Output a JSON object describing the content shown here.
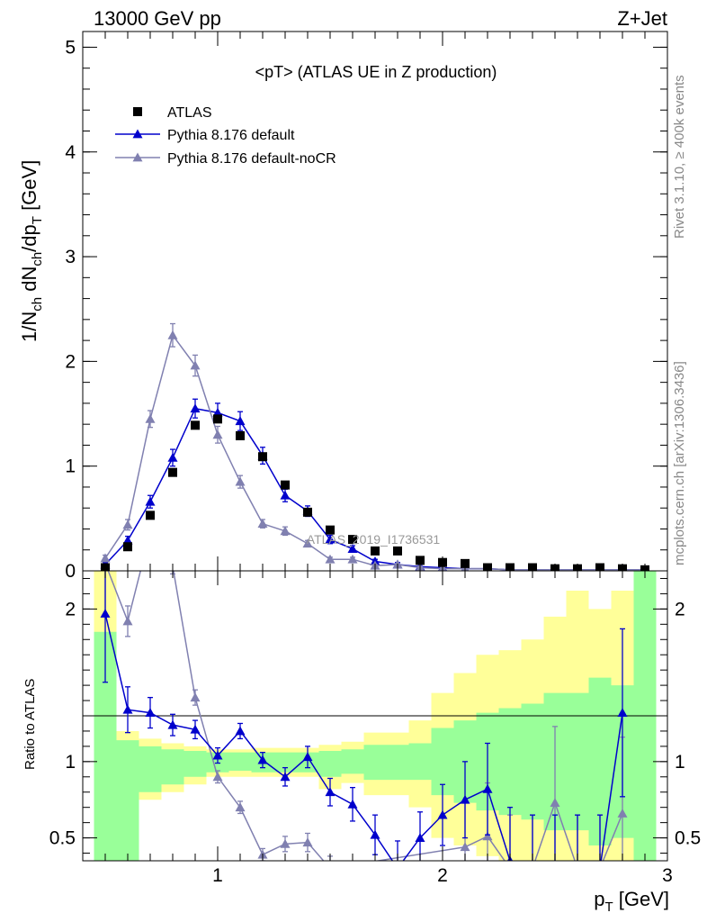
{
  "header": {
    "left": "13000 GeV pp",
    "right": "Z+Jet"
  },
  "side_text": {
    "top": "Rivet 3.1.10, ≥ 400k events",
    "bottom": "mcplots.cern.ch [arXiv:1306.3436]"
  },
  "watermark": "ATLAS_2019_I1736531",
  "chart_data": [
    {
      "type": "scatter",
      "panel": "main",
      "title": "<pT> (ATLAS UE in Z production)",
      "ylabel": "1/N_ch dN_ch/dp_T [GeV]",
      "xlim": [
        0.4,
        3.0
      ],
      "ylim": [
        0,
        5.15
      ],
      "x_ticks": [
        1,
        2,
        3
      ],
      "y_ticks": [
        0,
        1,
        2,
        3,
        4,
        5
      ],
      "legend_position": "top-left",
      "series": [
        {
          "name": "ATLAS",
          "marker": "square",
          "color": "#000000",
          "x": [
            0.5,
            0.6,
            0.7,
            0.8,
            0.9,
            1.0,
            1.1,
            1.2,
            1.3,
            1.4,
            1.5,
            1.6,
            1.7,
            1.8,
            1.9,
            2.0,
            2.1,
            2.2,
            2.3,
            2.4,
            2.5,
            2.6,
            2.7,
            2.8,
            2.9
          ],
          "y": [
            0.03,
            0.23,
            0.53,
            0.94,
            1.39,
            1.45,
            1.29,
            1.09,
            0.82,
            0.56,
            0.39,
            0.3,
            0.19,
            0.19,
            0.1,
            0.08,
            0.07,
            0.03,
            0.03,
            0.03,
            0.02,
            0.02,
            0.03,
            0.02,
            0.01
          ]
        },
        {
          "name": "Pythia 8.176 default",
          "marker": "triangle",
          "color": "#0000cc",
          "x": [
            0.5,
            0.6,
            0.7,
            0.8,
            0.9,
            1.0,
            1.1,
            1.2,
            1.3,
            1.4,
            1.5,
            1.6,
            1.7,
            1.8,
            1.9,
            2.0,
            2.1,
            2.2,
            2.3,
            2.4,
            2.5,
            2.6,
            2.7,
            2.8,
            2.9
          ],
          "y": [
            0.06,
            0.29,
            0.66,
            1.08,
            1.55,
            1.51,
            1.43,
            1.1,
            0.72,
            0.57,
            0.3,
            0.21,
            0.09,
            0.06,
            0.04,
            0.03,
            0.02,
            0.02,
            0.01,
            0.01,
            0.01,
            0.01,
            0.01,
            0.01,
            0.01
          ],
          "err": [
            0.02,
            0.04,
            0.06,
            0.08,
            0.09,
            0.09,
            0.09,
            0.08,
            0.06,
            0.05,
            0.04,
            0.03,
            0.02,
            0.02,
            0.02,
            0.02,
            0.02,
            0.02,
            0.01,
            0.01,
            0.01,
            0.01,
            0.01,
            0.01,
            0.01
          ]
        },
        {
          "name": "Pythia 8.176 default-noCR",
          "marker": "triangle",
          "color": "#8080b0",
          "x": [
            0.5,
            0.6,
            0.7,
            0.8,
            0.9,
            1.0,
            1.1,
            1.2,
            1.3,
            1.4,
            1.5,
            1.6,
            1.7,
            1.8,
            1.9,
            2.0,
            2.1,
            2.2,
            2.3,
            2.4,
            2.5,
            2.6,
            2.7,
            2.8,
            2.9
          ],
          "y": [
            0.12,
            0.44,
            1.45,
            2.25,
            1.96,
            1.3,
            0.85,
            0.45,
            0.38,
            0.26,
            0.11,
            0.11,
            0.05,
            0.06,
            0.03,
            0.02,
            0.02,
            0.02,
            0.01,
            0.01,
            0.01,
            0.01,
            0.01,
            0.01,
            0.01
          ],
          "err": [
            0.03,
            0.05,
            0.08,
            0.11,
            0.1,
            0.08,
            0.06,
            0.04,
            0.04,
            0.03,
            0.02,
            0.02,
            0.01,
            0.01,
            0.01,
            0.01,
            0.01,
            0.01,
            0.01,
            0.01,
            0.01,
            0.01,
            0.01,
            0.01,
            0.01
          ]
        }
      ]
    },
    {
      "type": "line",
      "panel": "ratio",
      "ylabel": "Ratio to ATLAS",
      "xlabel": "p_T [GeV]",
      "xlim": [
        0.4,
        3.0
      ],
      "ylim": [
        0.35,
        2.25
      ],
      "x_ticks": [
        1,
        2,
        3
      ],
      "y_ticks": [
        0.5,
        1,
        2
      ],
      "bins": [
        0.45,
        0.55,
        0.65,
        0.75,
        0.85,
        0.95,
        1.05,
        1.15,
        1.25,
        1.35,
        1.45,
        1.55,
        1.65,
        1.75,
        1.85,
        1.95,
        2.05,
        2.15,
        2.25,
        2.35,
        2.45,
        2.55,
        2.65,
        2.75,
        2.85,
        2.95
      ],
      "band_green_lo": [
        0.3,
        0.3,
        0.8,
        0.85,
        0.9,
        0.93,
        0.94,
        0.93,
        0.93,
        0.93,
        0.9,
        0.92,
        0.88,
        0.88,
        0.88,
        0.78,
        0.73,
        0.68,
        0.65,
        0.62,
        0.55,
        0.55,
        0.45,
        0.5,
        0.3
      ],
      "band_green_hi": [
        1.85,
        1.14,
        1.1,
        1.08,
        1.07,
        1.06,
        1.06,
        1.06,
        1.06,
        1.06,
        1.07,
        1.08,
        1.11,
        1.11,
        1.12,
        1.22,
        1.27,
        1.32,
        1.35,
        1.38,
        1.45,
        1.45,
        1.55,
        1.5,
        2.3
      ],
      "band_yellow_lo": [
        0.3,
        0.65,
        0.75,
        0.8,
        0.85,
        0.9,
        0.9,
        0.9,
        0.9,
        0.9,
        0.82,
        0.86,
        0.78,
        0.78,
        0.7,
        0.5,
        0.45,
        0.38,
        0.35,
        0.35,
        0.3,
        0.3,
        0.3,
        0.3,
        0.3
      ],
      "band_yellow_hi": [
        2.3,
        1.2,
        1.15,
        1.12,
        1.1,
        1.08,
        1.08,
        1.09,
        1.09,
        1.09,
        1.11,
        1.13,
        1.19,
        1.19,
        1.27,
        1.45,
        1.58,
        1.7,
        1.73,
        1.8,
        1.95,
        2.12,
        2.0,
        2.12,
        2.3
      ],
      "series": [
        {
          "name": "Pythia 8.176 default",
          "color": "#0000cc",
          "x": [
            0.5,
            0.6,
            0.7,
            0.8,
            0.9,
            1.0,
            1.1,
            1.2,
            1.3,
            1.4,
            1.5,
            1.6,
            1.7,
            1.8,
            1.9,
            2.0,
            2.1,
            2.2,
            2.3,
            2.4,
            2.5,
            2.6,
            2.7,
            2.8
          ],
          "y": [
            1.97,
            1.34,
            1.32,
            1.24,
            1.21,
            1.04,
            1.2,
            1.01,
            0.9,
            1.03,
            0.8,
            0.72,
            0.52,
            0.3,
            0.5,
            0.65,
            0.75,
            0.82,
            0.35,
            0.3,
            0.3,
            0.3,
            0.3,
            1.32
          ],
          "err": [
            0.45,
            0.15,
            0.1,
            0.07,
            0.06,
            0.05,
            0.05,
            0.05,
            0.06,
            0.07,
            0.09,
            0.11,
            0.13,
            0.18,
            0.17,
            0.2,
            0.25,
            0.3,
            0.35,
            0.35,
            0.35,
            0.35,
            0.35,
            0.55
          ]
        },
        {
          "name": "Pythia 8.176 default-noCR",
          "color": "#8080b0",
          "x": [
            0.5,
            0.6,
            0.7,
            0.8,
            0.9,
            1.0,
            1.1,
            1.2,
            1.3,
            1.4,
            1.5,
            2.1,
            2.2,
            2.3,
            2.4,
            2.5,
            2.6,
            2.7,
            2.8
          ],
          "y": [
            2.3,
            1.92,
            2.5,
            2.28,
            1.42,
            0.9,
            0.7,
            0.39,
            0.46,
            0.47,
            0.3,
            0.44,
            0.51,
            0.3,
            0.3,
            0.73,
            0.3,
            0.3,
            0.66
          ],
          "err": [
            0.35,
            0.1,
            0.1,
            0.05,
            0.05,
            0.04,
            0.04,
            0.04,
            0.05,
            0.06,
            0.08,
            0.3,
            0.35,
            0.35,
            0.35,
            0.5,
            0.35,
            0.35,
            0.5
          ]
        }
      ]
    }
  ]
}
